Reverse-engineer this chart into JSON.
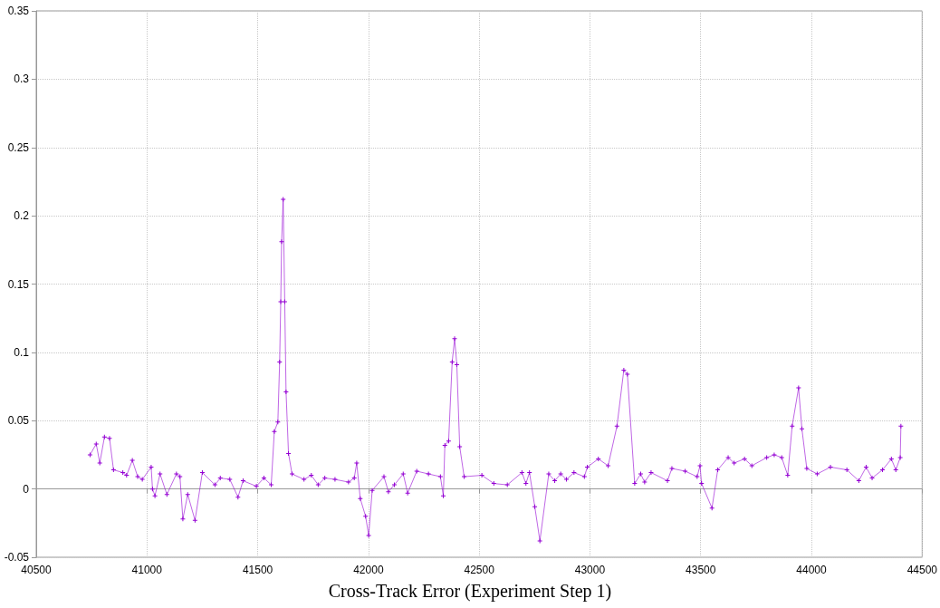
{
  "chart_data": {
    "type": "line",
    "title": "Cross-Track Error (Experiment Step 1)",
    "x": [
      40743,
      40771,
      40787,
      40808,
      40831,
      40849,
      40891,
      40908,
      40934,
      40958,
      40979,
      41019,
      41025,
      41036,
      41059,
      41090,
      41133,
      41149,
      41162,
      41184,
      41217,
      41250,
      41307,
      41331,
      41374,
      41411,
      41434,
      41494,
      41528,
      41561,
      41575,
      41591,
      41599,
      41604,
      41608,
      41615,
      41622,
      41628,
      41639,
      41655,
      41709,
      41742,
      41773,
      41803,
      41849,
      41910,
      41936,
      41947,
      41963,
      41987,
      42001,
      42017,
      42070,
      42090,
      42117,
      42157,
      42177,
      42218,
      42271,
      42325,
      42338,
      42345,
      42362,
      42378,
      42389,
      42399,
      42412,
      42432,
      42512,
      42566,
      42627,
      42693,
      42711,
      42727,
      42751,
      42774,
      42814,
      42841,
      42868,
      42894,
      42928,
      42975,
      42988,
      43038,
      43082,
      43122,
      43153,
      43169,
      43202,
      43229,
      43247,
      43276,
      43350,
      43370,
      43430,
      43484,
      43497,
      43504,
      43551,
      43577,
      43624,
      43651,
      43698,
      43731,
      43798,
      43832,
      43866,
      43893,
      43913,
      43942,
      43957,
      43979,
      44026,
      44086,
      44160,
      44214,
      44247,
      44274,
      44321,
      44361,
      44381,
      44401,
      44404
    ],
    "series": [
      {
        "color": "#9400d3",
        "values": [
          0.025,
          0.033,
          0.019,
          0.038,
          0.037,
          0.014,
          0.012,
          0.01,
          0.021,
          0.009,
          0.007,
          0.016,
          0.0,
          -0.005,
          0.011,
          -0.004,
          0.011,
          0.009,
          -0.022,
          -0.004,
          -0.023,
          0.012,
          0.003,
          0.008,
          0.007,
          -0.006,
          0.006,
          0.002,
          0.008,
          0.003,
          0.042,
          0.049,
          0.093,
          0.137,
          0.181,
          0.212,
          0.137,
          0.071,
          0.026,
          0.011,
          0.007,
          0.01,
          0.003,
          0.008,
          0.007,
          0.005,
          0.008,
          0.019,
          -0.007,
          -0.02,
          -0.034,
          -0.001,
          0.009,
          -0.002,
          0.003,
          0.011,
          -0.003,
          0.013,
          0.011,
          0.009,
          -0.005,
          0.032,
          0.035,
          0.093,
          0.11,
          0.091,
          0.031,
          0.009,
          0.01,
          0.004,
          0.003,
          0.012,
          0.004,
          0.012,
          -0.013,
          -0.038,
          0.011,
          0.006,
          0.011,
          0.007,
          0.012,
          0.009,
          0.016,
          0.022,
          0.017,
          0.046,
          0.087,
          0.084,
          0.004,
          0.011,
          0.005,
          0.012,
          0.006,
          0.015,
          0.013,
          0.009,
          0.017,
          0.004,
          -0.014,
          0.014,
          0.023,
          0.019,
          0.022,
          0.017,
          0.023,
          0.025,
          0.023,
          0.01,
          0.046,
          0.074,
          0.044,
          0.015,
          0.011,
          0.016,
          0.014,
          0.006,
          0.016,
          0.008,
          0.014,
          0.022,
          0.014,
          0.023,
          0.046
        ]
      }
    ],
    "xlim": [
      40500,
      44500
    ],
    "xticks": [
      40500,
      41000,
      41500,
      42000,
      42500,
      43000,
      43500,
      44000,
      44500
    ],
    "ylim": [
      -0.05,
      0.35
    ],
    "yticks": [
      -0.05,
      0,
      0.05,
      0.1,
      0.15,
      0.2,
      0.25,
      0.3,
      0.35
    ],
    "grid": true,
    "marker": "cross",
    "line_style": "solid"
  }
}
